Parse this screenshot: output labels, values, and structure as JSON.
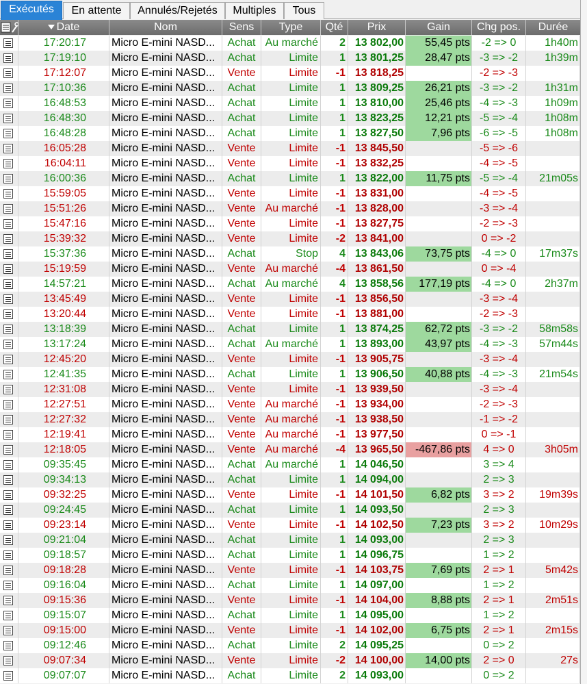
{
  "tabs": [
    "Exécutés",
    "En attente",
    "Annulés/Rejetés",
    "Multiples",
    "Tous"
  ],
  "columns": {
    "date": "Date",
    "nom": "Nom",
    "sens": "Sens",
    "type": "Type",
    "qte": "Qté",
    "prix": "Prix",
    "gain": "Gain",
    "chg": "Chg pos.",
    "duree": "Durée"
  },
  "icons": {
    "header_doc": "document-icon",
    "header_settings": "wrench-icon",
    "sort": "sort-down-icon",
    "row": "document-icon"
  },
  "colors": {
    "buy": "#1a8a1a",
    "sell": "#c00000",
    "gain_positive": "#9ed99e",
    "gain_negative": "#e8a0a0",
    "active_tab": "#2a83d6"
  },
  "rows": [
    {
      "date": "17:20:17",
      "nom": "Micro E-mini NASD...",
      "sens": "Achat",
      "type": "Au marché",
      "qte": "2",
      "prix": "13 802,00",
      "gain": "55,45 pts",
      "chg": "-2 => 0",
      "duree": "1h40m"
    },
    {
      "date": "17:19:10",
      "nom": "Micro E-mini NASD...",
      "sens": "Achat",
      "type": "Limite",
      "qte": "1",
      "prix": "13 801,25",
      "gain": "28,47 pts",
      "chg": "-3 => -2",
      "duree": "1h39m"
    },
    {
      "date": "17:12:07",
      "nom": "Micro E-mini NASD...",
      "sens": "Vente",
      "type": "Limite",
      "qte": "-1",
      "prix": "13 818,25",
      "gain": "",
      "chg": "-2 => -3",
      "duree": ""
    },
    {
      "date": "17:10:36",
      "nom": "Micro E-mini NASD...",
      "sens": "Achat",
      "type": "Limite",
      "qte": "1",
      "prix": "13 809,25",
      "gain": "26,21 pts",
      "chg": "-3 => -2",
      "duree": "1h31m"
    },
    {
      "date": "16:48:53",
      "nom": "Micro E-mini NASD...",
      "sens": "Achat",
      "type": "Limite",
      "qte": "1",
      "prix": "13 810,00",
      "gain": "25,46 pts",
      "chg": "-4 => -3",
      "duree": "1h09m"
    },
    {
      "date": "16:48:30",
      "nom": "Micro E-mini NASD...",
      "sens": "Achat",
      "type": "Limite",
      "qte": "1",
      "prix": "13 823,25",
      "gain": "12,21 pts",
      "chg": "-5 => -4",
      "duree": "1h08m"
    },
    {
      "date": "16:48:28",
      "nom": "Micro E-mini NASD...",
      "sens": "Achat",
      "type": "Limite",
      "qte": "1",
      "prix": "13 827,50",
      "gain": "7,96 pts",
      "chg": "-6 => -5",
      "duree": "1h08m"
    },
    {
      "date": "16:05:28",
      "nom": "Micro E-mini NASD...",
      "sens": "Vente",
      "type": "Limite",
      "qte": "-1",
      "prix": "13 845,50",
      "gain": "",
      "chg": "-5 => -6",
      "duree": ""
    },
    {
      "date": "16:04:11",
      "nom": "Micro E-mini NASD...",
      "sens": "Vente",
      "type": "Limite",
      "qte": "-1",
      "prix": "13 832,25",
      "gain": "",
      "chg": "-4 => -5",
      "duree": ""
    },
    {
      "date": "16:00:36",
      "nom": "Micro E-mini NASD...",
      "sens": "Achat",
      "type": "Limite",
      "qte": "1",
      "prix": "13 822,00",
      "gain": "11,75 pts",
      "chg": "-5 => -4",
      "duree": "21m05s"
    },
    {
      "date": "15:59:05",
      "nom": "Micro E-mini NASD...",
      "sens": "Vente",
      "type": "Limite",
      "qte": "-1",
      "prix": "13 831,00",
      "gain": "",
      "chg": "-4 => -5",
      "duree": ""
    },
    {
      "date": "15:51:26",
      "nom": "Micro E-mini NASD...",
      "sens": "Vente",
      "type": "Au marché",
      "qte": "-1",
      "prix": "13 828,00",
      "gain": "",
      "chg": "-3 => -4",
      "duree": ""
    },
    {
      "date": "15:47:16",
      "nom": "Micro E-mini NASD...",
      "sens": "Vente",
      "type": "Limite",
      "qte": "-1",
      "prix": "13 827,75",
      "gain": "",
      "chg": "-2 => -3",
      "duree": ""
    },
    {
      "date": "15:39:32",
      "nom": "Micro E-mini NASD...",
      "sens": "Vente",
      "type": "Limite",
      "qte": "-2",
      "prix": "13 841,00",
      "gain": "",
      "chg": "0 => -2",
      "duree": ""
    },
    {
      "date": "15:37:36",
      "nom": "Micro E-mini NASD...",
      "sens": "Achat",
      "type": "Stop",
      "qte": "4",
      "prix": "13 843,06",
      "gain": "73,75 pts",
      "chg": "-4 => 0",
      "duree": "17m37s"
    },
    {
      "date": "15:19:59",
      "nom": "Micro E-mini NASD...",
      "sens": "Vente",
      "type": "Au marché",
      "qte": "-4",
      "prix": "13 861,50",
      "gain": "",
      "chg": "0 => -4",
      "duree": ""
    },
    {
      "date": "14:57:21",
      "nom": "Micro E-mini NASD...",
      "sens": "Achat",
      "type": "Au marché",
      "qte": "4",
      "prix": "13 858,56",
      "gain": "177,19 pts",
      "chg": "-4 => 0",
      "duree": "2h37m"
    },
    {
      "date": "13:45:49",
      "nom": "Micro E-mini NASD...",
      "sens": "Vente",
      "type": "Limite",
      "qte": "-1",
      "prix": "13 856,50",
      "gain": "",
      "chg": "-3 => -4",
      "duree": ""
    },
    {
      "date": "13:20:44",
      "nom": "Micro E-mini NASD...",
      "sens": "Vente",
      "type": "Limite",
      "qte": "-1",
      "prix": "13 881,00",
      "gain": "",
      "chg": "-2 => -3",
      "duree": ""
    },
    {
      "date": "13:18:39",
      "nom": "Micro E-mini NASD...",
      "sens": "Achat",
      "type": "Limite",
      "qte": "1",
      "prix": "13 874,25",
      "gain": "62,72 pts",
      "chg": "-3 => -2",
      "duree": "58m58s"
    },
    {
      "date": "13:17:24",
      "nom": "Micro E-mini NASD...",
      "sens": "Achat",
      "type": "Au marché",
      "qte": "1",
      "prix": "13 893,00",
      "gain": "43,97 pts",
      "chg": "-4 => -3",
      "duree": "57m44s"
    },
    {
      "date": "12:45:20",
      "nom": "Micro E-mini NASD...",
      "sens": "Vente",
      "type": "Limite",
      "qte": "-1",
      "prix": "13 905,75",
      "gain": "",
      "chg": "-3 => -4",
      "duree": ""
    },
    {
      "date": "12:41:35",
      "nom": "Micro E-mini NASD...",
      "sens": "Achat",
      "type": "Limite",
      "qte": "1",
      "prix": "13 906,50",
      "gain": "40,88 pts",
      "chg": "-4 => -3",
      "duree": "21m54s"
    },
    {
      "date": "12:31:08",
      "nom": "Micro E-mini NASD...",
      "sens": "Vente",
      "type": "Limite",
      "qte": "-1",
      "prix": "13 939,50",
      "gain": "",
      "chg": "-3 => -4",
      "duree": ""
    },
    {
      "date": "12:27:51",
      "nom": "Micro E-mini NASD...",
      "sens": "Vente",
      "type": "Au marché",
      "qte": "-1",
      "prix": "13 934,00",
      "gain": "",
      "chg": "-2 => -3",
      "duree": ""
    },
    {
      "date": "12:27:32",
      "nom": "Micro E-mini NASD...",
      "sens": "Vente",
      "type": "Au marché",
      "qte": "-1",
      "prix": "13 938,50",
      "gain": "",
      "chg": "-1 => -2",
      "duree": ""
    },
    {
      "date": "12:19:41",
      "nom": "Micro E-mini NASD...",
      "sens": "Vente",
      "type": "Au marché",
      "qte": "-1",
      "prix": "13 977,50",
      "gain": "",
      "chg": "0 => -1",
      "duree": ""
    },
    {
      "date": "12:18:05",
      "nom": "Micro E-mini NASD...",
      "sens": "Vente",
      "type": "Au marché",
      "qte": "-4",
      "prix": "13 965,50",
      "gain": "-467,86 pts",
      "chg": "4 => 0",
      "duree": "3h05m"
    },
    {
      "date": "09:35:45",
      "nom": "Micro E-mini NASD...",
      "sens": "Achat",
      "type": "Au marché",
      "qte": "1",
      "prix": "14 046,50",
      "gain": "",
      "chg": "3 => 4",
      "duree": ""
    },
    {
      "date": "09:34:13",
      "nom": "Micro E-mini NASD...",
      "sens": "Achat",
      "type": "Limite",
      "qte": "1",
      "prix": "14 094,00",
      "gain": "",
      "chg": "2 => 3",
      "duree": ""
    },
    {
      "date": "09:32:25",
      "nom": "Micro E-mini NASD...",
      "sens": "Vente",
      "type": "Limite",
      "qte": "-1",
      "prix": "14 101,50",
      "gain": "6,82 pts",
      "chg": "3 => 2",
      "duree": "19m39s"
    },
    {
      "date": "09:24:45",
      "nom": "Micro E-mini NASD...",
      "sens": "Achat",
      "type": "Limite",
      "qte": "1",
      "prix": "14 093,50",
      "gain": "",
      "chg": "2 => 3",
      "duree": ""
    },
    {
      "date": "09:23:14",
      "nom": "Micro E-mini NASD...",
      "sens": "Vente",
      "type": "Limite",
      "qte": "-1",
      "prix": "14 102,50",
      "gain": "7,23 pts",
      "chg": "3 => 2",
      "duree": "10m29s"
    },
    {
      "date": "09:21:04",
      "nom": "Micro E-mini NASD...",
      "sens": "Achat",
      "type": "Limite",
      "qte": "1",
      "prix": "14 093,00",
      "gain": "",
      "chg": "2 => 3",
      "duree": ""
    },
    {
      "date": "09:18:57",
      "nom": "Micro E-mini NASD...",
      "sens": "Achat",
      "type": "Limite",
      "qte": "1",
      "prix": "14 096,75",
      "gain": "",
      "chg": "1 => 2",
      "duree": ""
    },
    {
      "date": "09:18:28",
      "nom": "Micro E-mini NASD...",
      "sens": "Vente",
      "type": "Limite",
      "qte": "-1",
      "prix": "14 103,75",
      "gain": "7,69 pts",
      "chg": "2 => 1",
      "duree": "5m42s"
    },
    {
      "date": "09:16:04",
      "nom": "Micro E-mini NASD...",
      "sens": "Achat",
      "type": "Limite",
      "qte": "1",
      "prix": "14 097,00",
      "gain": "",
      "chg": "1 => 2",
      "duree": ""
    },
    {
      "date": "09:15:36",
      "nom": "Micro E-mini NASD...",
      "sens": "Vente",
      "type": "Limite",
      "qte": "-1",
      "prix": "14 104,00",
      "gain": "8,88 pts",
      "chg": "2 => 1",
      "duree": "2m51s"
    },
    {
      "date": "09:15:07",
      "nom": "Micro E-mini NASD...",
      "sens": "Achat",
      "type": "Limite",
      "qte": "1",
      "prix": "14 095,00",
      "gain": "",
      "chg": "1 => 2",
      "duree": ""
    },
    {
      "date": "09:15:00",
      "nom": "Micro E-mini NASD...",
      "sens": "Vente",
      "type": "Limite",
      "qte": "-1",
      "prix": "14 102,00",
      "gain": "6,75 pts",
      "chg": "2 => 1",
      "duree": "2m15s"
    },
    {
      "date": "09:12:46",
      "nom": "Micro E-mini NASD...",
      "sens": "Achat",
      "type": "Limite",
      "qte": "2",
      "prix": "14 095,25",
      "gain": "",
      "chg": "0 => 2",
      "duree": ""
    },
    {
      "date": "09:07:34",
      "nom": "Micro E-mini NASD...",
      "sens": "Vente",
      "type": "Limite",
      "qte": "-2",
      "prix": "14 100,00",
      "gain": "14,00 pts",
      "chg": "2 => 0",
      "duree": "27s"
    },
    {
      "date": "09:07:07",
      "nom": "Micro E-mini NASD...",
      "sens": "Achat",
      "type": "Limite",
      "qte": "2",
      "prix": "14 093,00",
      "gain": "",
      "chg": "0 => 2",
      "duree": ""
    }
  ]
}
